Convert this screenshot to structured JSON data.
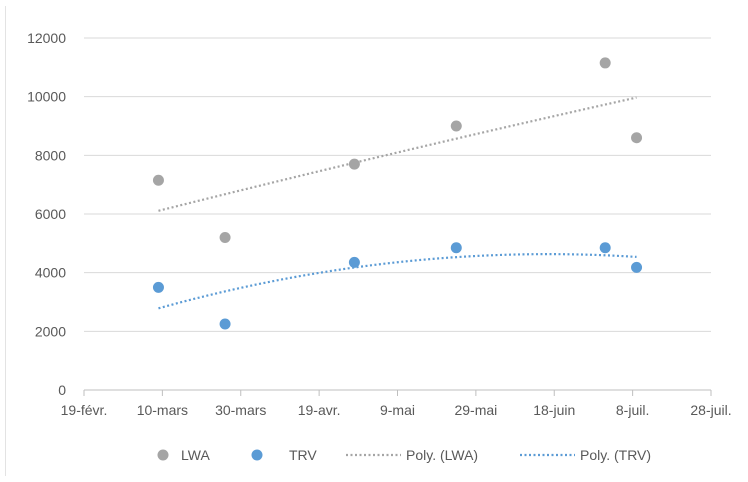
{
  "chart_data": {
    "type": "scatter",
    "title": "",
    "xlabel": "",
    "ylabel": "",
    "x_axis": {
      "type": "date",
      "range": [
        "2020-02-19",
        "2020-07-28"
      ],
      "ticks": [
        {
          "date": "2020-02-19",
          "label": "19-févr."
        },
        {
          "date": "2020-03-10",
          "label": "10-mars"
        },
        {
          "date": "2020-03-30",
          "label": "30-mars"
        },
        {
          "date": "2020-04-19",
          "label": "19-avr."
        },
        {
          "date": "2020-05-09",
          "label": "9-mai"
        },
        {
          "date": "2020-05-29",
          "label": "29-mai"
        },
        {
          "date": "2020-06-18",
          "label": "18-juin"
        },
        {
          "date": "2020-07-08",
          "label": "8-juil."
        },
        {
          "date": "2020-07-28",
          "label": "28-juil."
        }
      ]
    },
    "y_axis": {
      "range": [
        0,
        12000
      ],
      "ticks": [
        0,
        2000,
        4000,
        6000,
        8000,
        10000,
        12000
      ],
      "gridlines": true
    },
    "series": [
      {
        "name": "LWA",
        "color": "#a5a5a5",
        "points": [
          {
            "x": "2020-03-09",
            "y": 7150
          },
          {
            "x": "2020-03-26",
            "y": 5200
          },
          {
            "x": "2020-04-28",
            "y": 7700
          },
          {
            "x": "2020-05-24",
            "y": 9000
          },
          {
            "x": "2020-07-01",
            "y": 11150
          },
          {
            "x": "2020-07-09",
            "y": 8600
          }
        ]
      },
      {
        "name": "TRV",
        "color": "#5b9bd5",
        "points": [
          {
            "x": "2020-03-09",
            "y": 3500
          },
          {
            "x": "2020-03-26",
            "y": 2250
          },
          {
            "x": "2020-04-28",
            "y": 4350
          },
          {
            "x": "2020-05-24",
            "y": 4850
          },
          {
            "x": "2020-07-01",
            "y": 4850
          },
          {
            "x": "2020-07-09",
            "y": 4180
          }
        ]
      }
    ],
    "trendlines": [
      {
        "name": "Poly. (LWA)",
        "series": "LWA",
        "kind": "polynomial",
        "order": 2,
        "style": "dotted",
        "color": "#a5a5a5"
      },
      {
        "name": "Poly. (TRV)",
        "series": "TRV",
        "kind": "polynomial",
        "order": 2,
        "style": "dotted",
        "color": "#5b9bd5"
      }
    ],
    "legend": {
      "position": "bottom",
      "entries": [
        {
          "label": "LWA",
          "kind": "marker",
          "color": "#a5a5a5"
        },
        {
          "label": "TRV",
          "kind": "marker",
          "color": "#5b9bd5"
        },
        {
          "label": "Poly. (LWA)",
          "kind": "dotted-line",
          "color": "#a5a5a5"
        },
        {
          "label": "Poly. (TRV)",
          "kind": "dotted-line",
          "color": "#5b9bd5"
        }
      ]
    }
  }
}
